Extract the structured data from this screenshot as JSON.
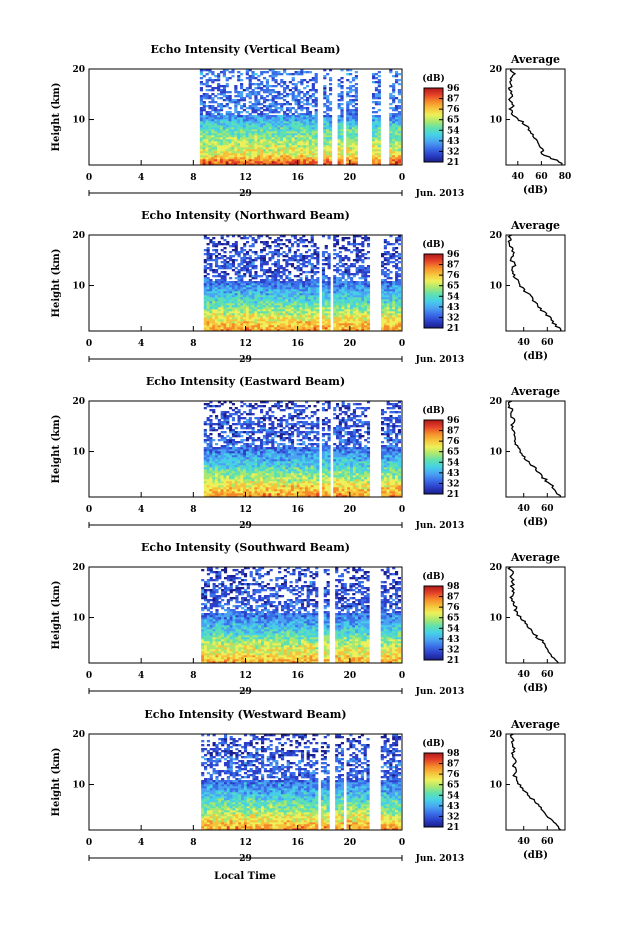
{
  "colors": {
    "scale": [
      "#1a1f8c",
      "#2b3fc8",
      "#3a6ee8",
      "#4aa3f2",
      "#46d0e8",
      "#5fe0b0",
      "#a8e870",
      "#eef05a",
      "#f7c23a",
      "#f58a2a",
      "#e4402a",
      "#b01818"
    ],
    "line": "#000000"
  },
  "chart_data": [
    {
      "type": "heatmap",
      "title": "Echo Intensity (Vertical Beam)",
      "ylabel": "Height (km)",
      "yticks": [
        "10",
        "20"
      ],
      "ylim": [
        1,
        20
      ],
      "xticks": [
        "0",
        "4",
        "8",
        "12",
        "16",
        "20",
        "0"
      ],
      "xlim": [
        0,
        24
      ],
      "date_day": "29",
      "date_monthyear": "Jun. 2013",
      "colorbar_unit": "(dB)",
      "colorbar_ticks": [
        "96",
        "87",
        "76",
        "65",
        "54",
        "43",
        "32",
        "21"
      ],
      "data_start_hour": 8.5,
      "gaps_hours": [
        [
          17.5,
          17.9
        ],
        [
          18.6,
          19.1
        ],
        [
          19.5,
          19.8
        ],
        [
          20.6,
          21.8
        ],
        [
          22.4,
          23.0
        ]
      ],
      "profile": {
        "title": "Average",
        "xlabel": "(dB)",
        "xticks": [
          "40",
          "60",
          "80"
        ],
        "xlim": [
          30,
          80
        ],
        "heights_km": [
          1,
          2,
          3,
          4,
          5,
          6,
          7,
          8,
          9,
          10,
          11,
          12,
          13,
          14,
          15,
          16,
          17,
          18,
          19,
          20
        ],
        "values_db": [
          78,
          72,
          62,
          60,
          58,
          55,
          52,
          50,
          46,
          41,
          36,
          34,
          36,
          33,
          36,
          32,
          35,
          33,
          38,
          34
        ]
      }
    },
    {
      "type": "heatmap",
      "title": "Echo Intensity (Northward Beam)",
      "ylabel": "Height (km)",
      "yticks": [
        "10",
        "20"
      ],
      "ylim": [
        1,
        20
      ],
      "xticks": [
        "0",
        "4",
        "8",
        "12",
        "16",
        "20",
        "0"
      ],
      "xlim": [
        0,
        24
      ],
      "date_day": "29",
      "date_monthyear": "Jun. 2013",
      "colorbar_unit": "(dB)",
      "colorbar_ticks": [
        "96",
        "87",
        "76",
        "65",
        "54",
        "43",
        "32",
        "21"
      ],
      "data_start_hour": 8.8,
      "gaps_hours": [
        [
          17.6,
          17.9
        ],
        [
          18.5,
          18.8
        ],
        [
          21.5,
          22.4
        ]
      ],
      "profile": {
        "title": "Average",
        "xlabel": "(dB)",
        "xticks": [
          "40",
          "60"
        ],
        "xlim": [
          25,
          75
        ],
        "heights_km": [
          1,
          2,
          3,
          4,
          5,
          6,
          7,
          8,
          9,
          10,
          11,
          12,
          13,
          14,
          15,
          16,
          17,
          18,
          19,
          20
        ],
        "values_db": [
          72,
          68,
          64,
          61,
          56,
          52,
          48,
          45,
          41,
          37,
          34,
          32,
          31,
          32,
          30,
          31,
          30,
          29,
          28,
          29
        ]
      }
    },
    {
      "type": "heatmap",
      "title": "Echo Intensity (Eastward Beam)",
      "ylabel": "Height (km)",
      "yticks": [
        "10",
        "20"
      ],
      "ylim": [
        1,
        20
      ],
      "xticks": [
        "0",
        "4",
        "8",
        "12",
        "16",
        "20",
        "0"
      ],
      "xlim": [
        0,
        24
      ],
      "date_day": "29",
      "date_monthyear": "Jun. 2013",
      "colorbar_unit": "(dB)",
      "colorbar_ticks": [
        "96",
        "87",
        "76",
        "65",
        "54",
        "43",
        "32",
        "21"
      ],
      "data_start_hour": 8.8,
      "gaps_hours": [
        [
          17.6,
          17.9
        ],
        [
          18.5,
          18.8
        ],
        [
          21.5,
          22.4
        ]
      ],
      "profile": {
        "title": "Average",
        "xlabel": "(dB)",
        "xticks": [
          "40",
          "60"
        ],
        "xlim": [
          25,
          75
        ],
        "heights_km": [
          1,
          2,
          3,
          4,
          5,
          6,
          7,
          8,
          9,
          10,
          11,
          12,
          13,
          14,
          15,
          16,
          17,
          18,
          19,
          20
        ],
        "values_db": [
          72,
          68,
          65,
          60,
          56,
          52,
          48,
          44,
          40,
          37,
          34,
          33,
          31,
          32,
          30,
          32,
          29,
          30,
          28,
          29
        ]
      }
    },
    {
      "type": "heatmap",
      "title": "Echo Intensity (Southward Beam)",
      "ylabel": "Height (km)",
      "yticks": [
        "10",
        "20"
      ],
      "ylim": [
        1,
        20
      ],
      "xticks": [
        "0",
        "4",
        "8",
        "12",
        "16",
        "20",
        "0"
      ],
      "xlim": [
        0,
        24
      ],
      "date_day": "29",
      "date_monthyear": "Jun. 2013",
      "colorbar_unit": "(dB)",
      "colorbar_ticks": [
        "98",
        "87",
        "76",
        "65",
        "54",
        "43",
        "32",
        "21"
      ],
      "data_start_hour": 8.6,
      "gaps_hours": [
        [
          17.6,
          17.9
        ],
        [
          18.5,
          18.8
        ],
        [
          21.5,
          22.4
        ]
      ],
      "profile": {
        "title": "Average",
        "xlabel": "(dB)",
        "xticks": [
          "40",
          "60"
        ],
        "xlim": [
          25,
          75
        ],
        "heights_km": [
          1,
          2,
          3,
          4,
          5,
          6,
          7,
          8,
          9,
          10,
          11,
          12,
          13,
          14,
          15,
          16,
          17,
          18,
          19,
          20
        ],
        "values_db": [
          70,
          66,
          62,
          60,
          58,
          52,
          48,
          44,
          41,
          37,
          34,
          33,
          31,
          30,
          32,
          30,
          31,
          29,
          30,
          28
        ]
      }
    },
    {
      "type": "heatmap",
      "title": "Echo Intensity (Westward Beam)",
      "ylabel": "Height (km)",
      "yticks": [
        "10",
        "20"
      ],
      "ylim": [
        1,
        20
      ],
      "xticks": [
        "0",
        "4",
        "8",
        "12",
        "16",
        "20",
        "0"
      ],
      "xlim": [
        0,
        24
      ],
      "date_day": "29",
      "date_monthyear": "Jun. 2013",
      "colorbar_unit": "(dB)",
      "colorbar_ticks": [
        "98",
        "87",
        "76",
        "65",
        "54",
        "43",
        "32",
        "21"
      ],
      "data_start_hour": 8.6,
      "gaps_hours": [
        [
          17.5,
          17.8
        ],
        [
          18.5,
          18.8
        ],
        [
          19.5,
          19.8
        ],
        [
          21.5,
          22.4
        ]
      ],
      "profile": {
        "title": "Average",
        "xlabel": "(dB)",
        "xticks": [
          "40",
          "60"
        ],
        "xlim": [
          25,
          75
        ],
        "heights_km": [
          1,
          2,
          3,
          4,
          5,
          6,
          7,
          8,
          9,
          10,
          11,
          12,
          13,
          14,
          15,
          16,
          17,
          18,
          19,
          20
        ],
        "values_db": [
          72,
          68,
          63,
          60,
          55,
          52,
          48,
          44,
          40,
          37,
          34,
          32,
          33,
          31,
          34,
          30,
          32,
          29,
          31,
          30
        ]
      }
    }
  ],
  "xaxis_label": "Local Time"
}
